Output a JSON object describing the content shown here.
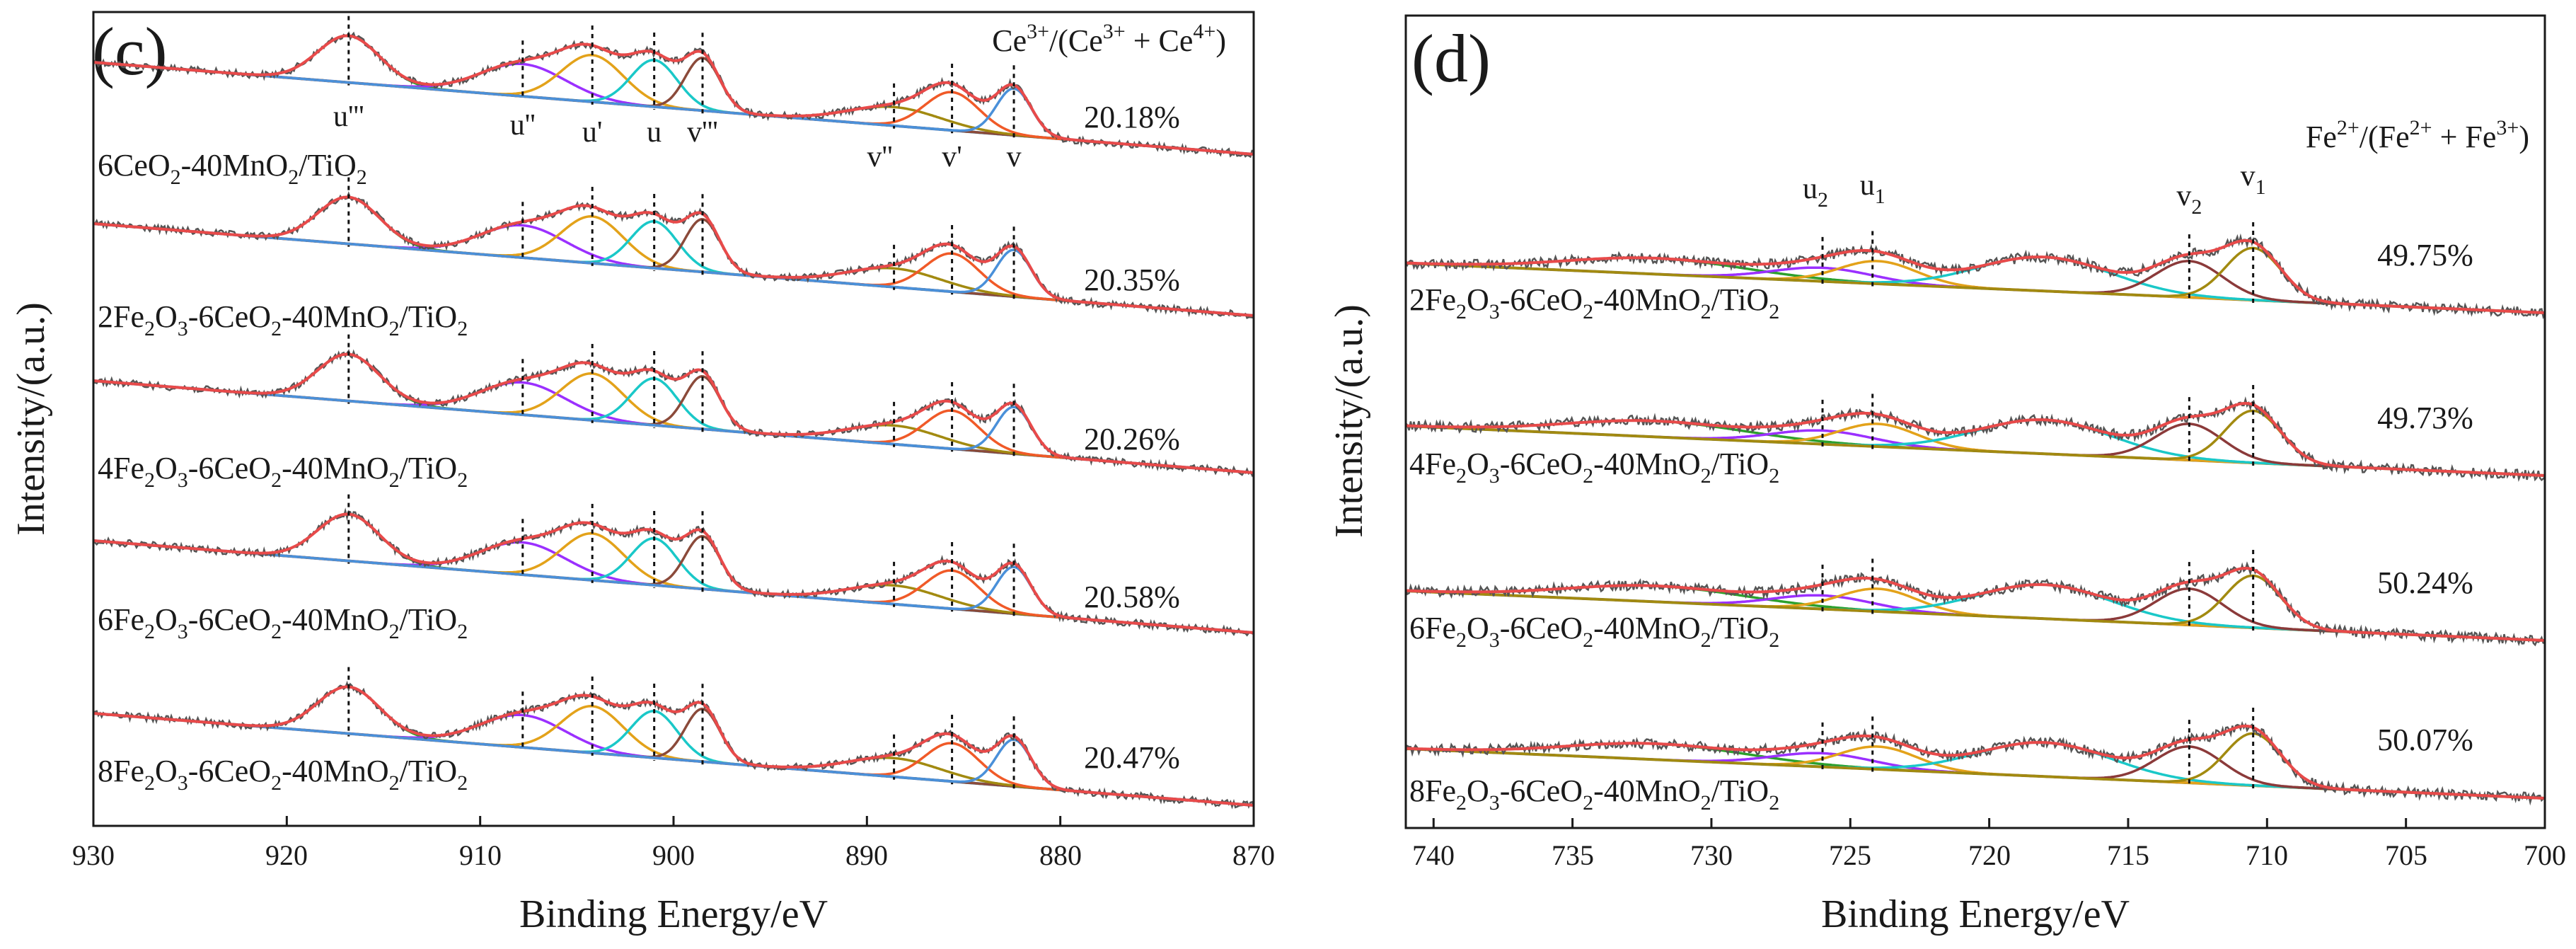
{
  "chart_data": [
    {
      "panel": "(c)",
      "type": "line",
      "subtype": "XPS Ce 3d stacked deconvolution spectra",
      "xlabel": "Binding Energy/eV",
      "ylabel": "Intensity/(a.u.)",
      "xlim": [
        930,
        870
      ],
      "x_reversed": true,
      "xticks": [
        "930",
        "920",
        "910",
        "900",
        "890",
        "880",
        "870"
      ],
      "ratio_header": {
        "base": "Ce",
        "s1": "3+",
        "mid1": "/(Ce",
        "s2": "3+",
        "mid2": " + Ce",
        "s3": "4+",
        "end": ")"
      },
      "peak_positions": [
        916.8,
        907.8,
        904.2,
        901.0,
        898.5,
        888.6,
        885.6,
        882.4
      ],
      "peak_labels": [
        "u'''",
        "u''",
        "u'",
        "u",
        "v'''",
        "v''",
        "v'",
        "v"
      ],
      "series": [
        {
          "name_prefix": "6CeO",
          "name_s1": "2",
          "name_mid": "-40MnO",
          "name_s2": "2",
          "name_end": "/TiO",
          "name_s3": "2",
          "ratio": "20.18%"
        },
        {
          "name_prefix": "2Fe",
          "name_s1": "2",
          "name_mid": "O",
          "name_s2": "3",
          "name_end": "-6CeO2-40MnO2/TiO2",
          "ratio": "20.35%"
        },
        {
          "name_prefix": "4Fe",
          "name_s1": "2",
          "name_mid": "O",
          "name_s2": "3",
          "name_end": "-6CeO2-40MnO2/TiO2",
          "ratio": "20.26%"
        },
        {
          "name_prefix": "6Fe",
          "name_s1": "2",
          "name_mid": "O",
          "name_s2": "3",
          "name_end": "-6CeO2-40MnO2/TiO2",
          "ratio": "20.58%"
        },
        {
          "name_prefix": "8Fe",
          "name_s1": "2",
          "name_mid": "O",
          "name_s2": "3",
          "name_end": "-6CeO2-40MnO2/TiO2",
          "ratio": "20.47%"
        }
      ],
      "series_labels": [
        "6CeO2-40MnO2/TiO2",
        "2Fe2O3-6CeO2-40MnO2/TiO2",
        "4Fe2O3-6CeO2-40MnO2/TiO2",
        "6Fe2O3-6CeO2-40MnO2/TiO2",
        "8Fe2O3-6CeO2-40MnO2/TiO2"
      ],
      "ratios": [
        "20.18%",
        "20.35%",
        "20.26%",
        "20.58%",
        "20.47%"
      ],
      "components": [
        {
          "center": 916.8,
          "sigma": 1.6,
          "amp": 0.55,
          "color": "#2ca02c"
        },
        {
          "center": 907.8,
          "sigma": 2.2,
          "amp": 0.38,
          "color": "#9b30ff"
        },
        {
          "center": 904.2,
          "sigma": 1.6,
          "amp": 0.55,
          "color": "#e3a21a"
        },
        {
          "center": 901.0,
          "sigma": 1.2,
          "amp": 0.55,
          "color": "#1ac8c8"
        },
        {
          "center": 898.5,
          "sigma": 0.9,
          "amp": 0.62,
          "color": "#8b4a3a"
        },
        {
          "center": 888.6,
          "sigma": 2.4,
          "amp": 0.22,
          "color": "#a28a10"
        },
        {
          "center": 885.6,
          "sigma": 1.4,
          "amp": 0.45,
          "color": "#f05a28"
        },
        {
          "center": 882.4,
          "sigma": 0.9,
          "amp": 0.55,
          "color": "#4a90d9"
        }
      ]
    },
    {
      "panel": "(d)",
      "type": "line",
      "subtype": "XPS Fe 2p stacked deconvolution spectra",
      "xlabel": "Binding Energy/eV",
      "ylabel": "Intensity/(a.u.)",
      "xlim": [
        741,
        700
      ],
      "x_reversed": true,
      "xticks": [
        "740",
        "735",
        "730",
        "725",
        "720",
        "715",
        "710",
        "705",
        "700"
      ],
      "ratio_header": {
        "base": "Fe",
        "s1": "2+",
        "mid1": "/(Fe",
        "s2": "2+",
        "mid2": " + Fe",
        "s3": "3+",
        "end": ")"
      },
      "peak_labels": [
        "u",
        "u",
        "v",
        "v"
      ],
      "peak_label_subs": [
        "2",
        "1",
        "2",
        "1"
      ],
      "peak_positions": [
        726.0,
        724.2,
        712.8,
        710.5
      ],
      "series": [
        {
          "name_prefix": "2Fe",
          "ratio": "49.75%"
        },
        {
          "name_prefix": "4Fe",
          "ratio": "49.73%"
        },
        {
          "name_prefix": "6Fe",
          "ratio": "50.24%"
        },
        {
          "name_prefix": "8Fe",
          "ratio": "50.07%"
        }
      ],
      "series_labels": [
        "2Fe2O3-6CeO2-40MnO2/TiO2",
        "4Fe2O3-6CeO2-40MnO2/TiO2",
        "6Fe2O3-6CeO2-40MnO2/TiO2",
        "8Fe2O3-6CeO2-40MnO2/TiO2"
      ],
      "ratios": [
        "49.75%",
        "49.73%",
        "50.24%",
        "50.07%"
      ],
      "components": [
        {
          "center": 732.0,
          "sigma": 3.2,
          "amp": 0.14,
          "color": "#2ca02c"
        },
        {
          "center": 726.0,
          "sigma": 1.8,
          "amp": 0.12,
          "color": "#9b30ff"
        },
        {
          "center": 724.0,
          "sigma": 1.4,
          "amp": 0.2,
          "color": "#e3a21a"
        },
        {
          "center": 718.0,
          "sigma": 2.4,
          "amp": 0.3,
          "color": "#1ac8c8"
        },
        {
          "center": 712.8,
          "sigma": 1.2,
          "amp": 0.32,
          "color": "#8b3a3a"
        },
        {
          "center": 710.5,
          "sigma": 1.0,
          "amp": 0.46,
          "color": "#a28a10"
        }
      ]
    }
  ]
}
